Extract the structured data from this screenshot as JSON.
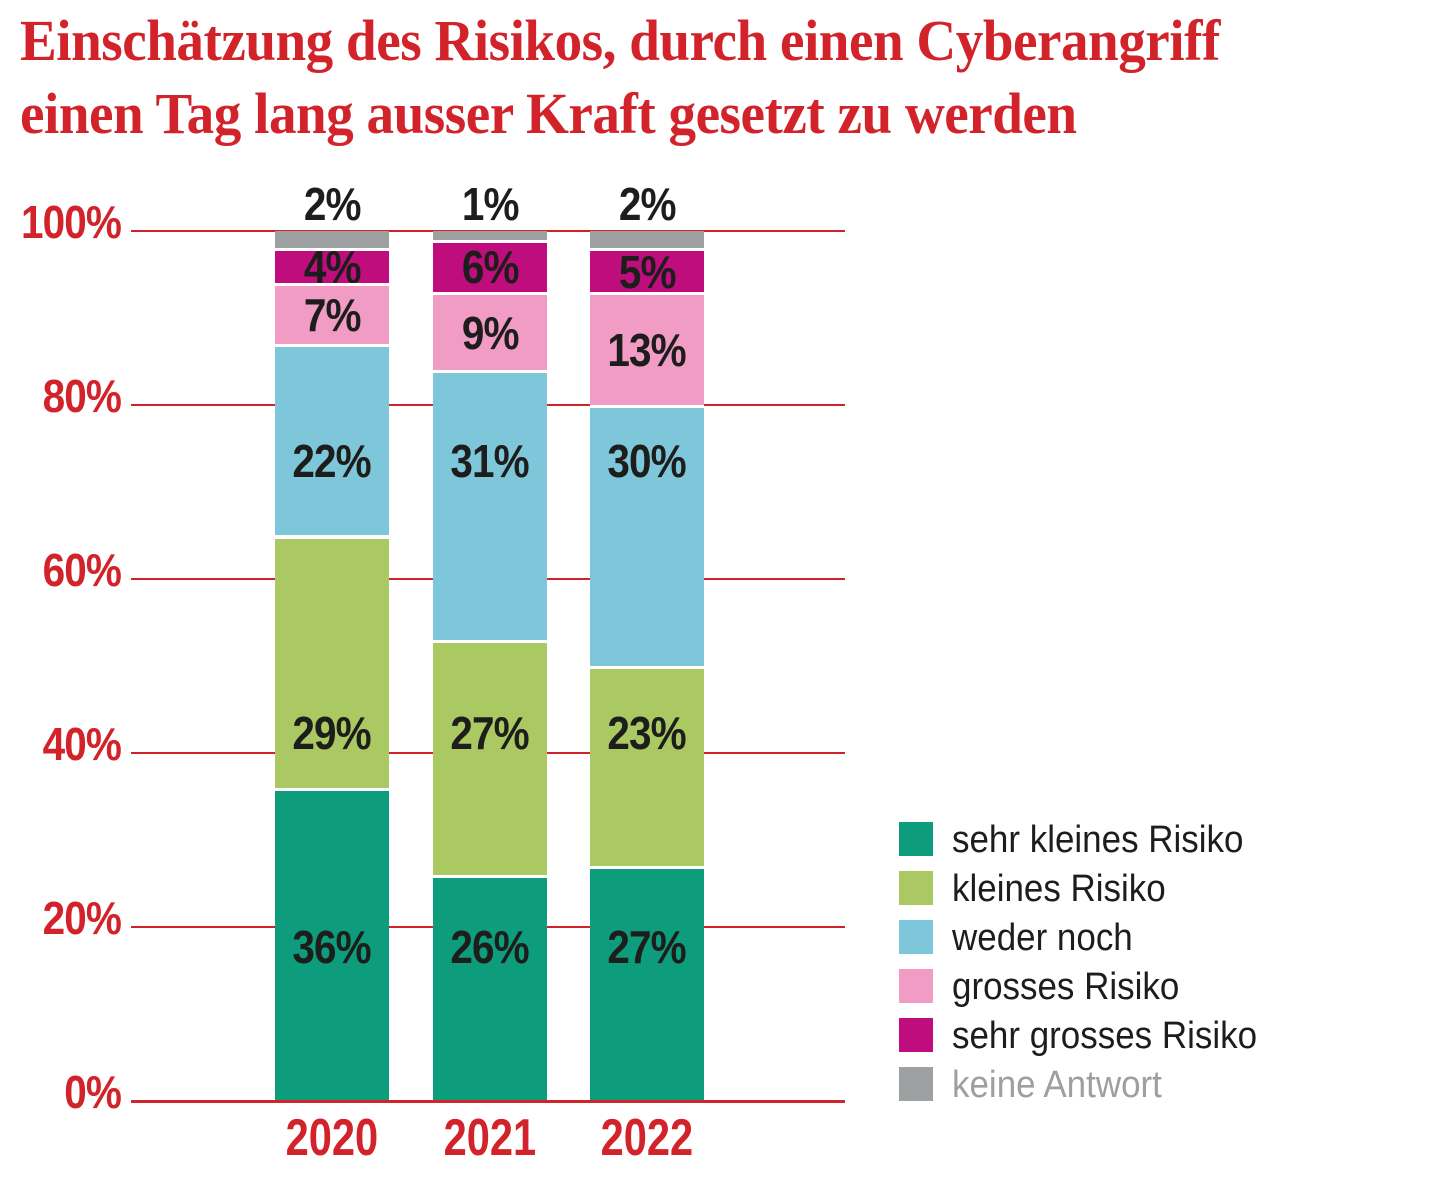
{
  "title_lines": [
    "Einschätzung des Risikos, durch einen Cyberangriff",
    "einen Tag lang ausser Kraft gesetzt zu werden"
  ],
  "chart_data": {
    "type": "bar",
    "stacked": true,
    "title": "Einschätzung des Risikos, durch einen Cyberangriff einen Tag lang ausser Kraft gesetzt zu werden",
    "categories": [
      "2020",
      "2021",
      "2022"
    ],
    "series": [
      {
        "name": "sehr kleines Risiko",
        "color": "#0d9c7c",
        "values": [
          36,
          26,
          27
        ]
      },
      {
        "name": "kleines Risiko",
        "color": "#aac963",
        "values": [
          29,
          27,
          23
        ]
      },
      {
        "name": "weder noch",
        "color": "#7ec6d9",
        "values": [
          22,
          31,
          30
        ]
      },
      {
        "name": "grosses Risiko",
        "color": "#f09cc5",
        "values": [
          7,
          9,
          13
        ]
      },
      {
        "name": "sehr grosses Risiko",
        "color": "#c00d7e",
        "values": [
          4,
          6,
          5
        ]
      },
      {
        "name": "keine Antwort",
        "color": "#9ca0a1",
        "values": [
          2,
          1,
          2
        ]
      }
    ],
    "value_suffix": "%",
    "ylim": [
      0,
      100
    ],
    "yticks": [
      "100%",
      "80%",
      "60%",
      "40%",
      "20%",
      "0%"
    ],
    "grid": true,
    "legend_position": "right",
    "colors": {
      "axis_red": "#d2232a",
      "label_black": "#1d1d1b",
      "muted_gray": "#9ca0a1"
    }
  }
}
